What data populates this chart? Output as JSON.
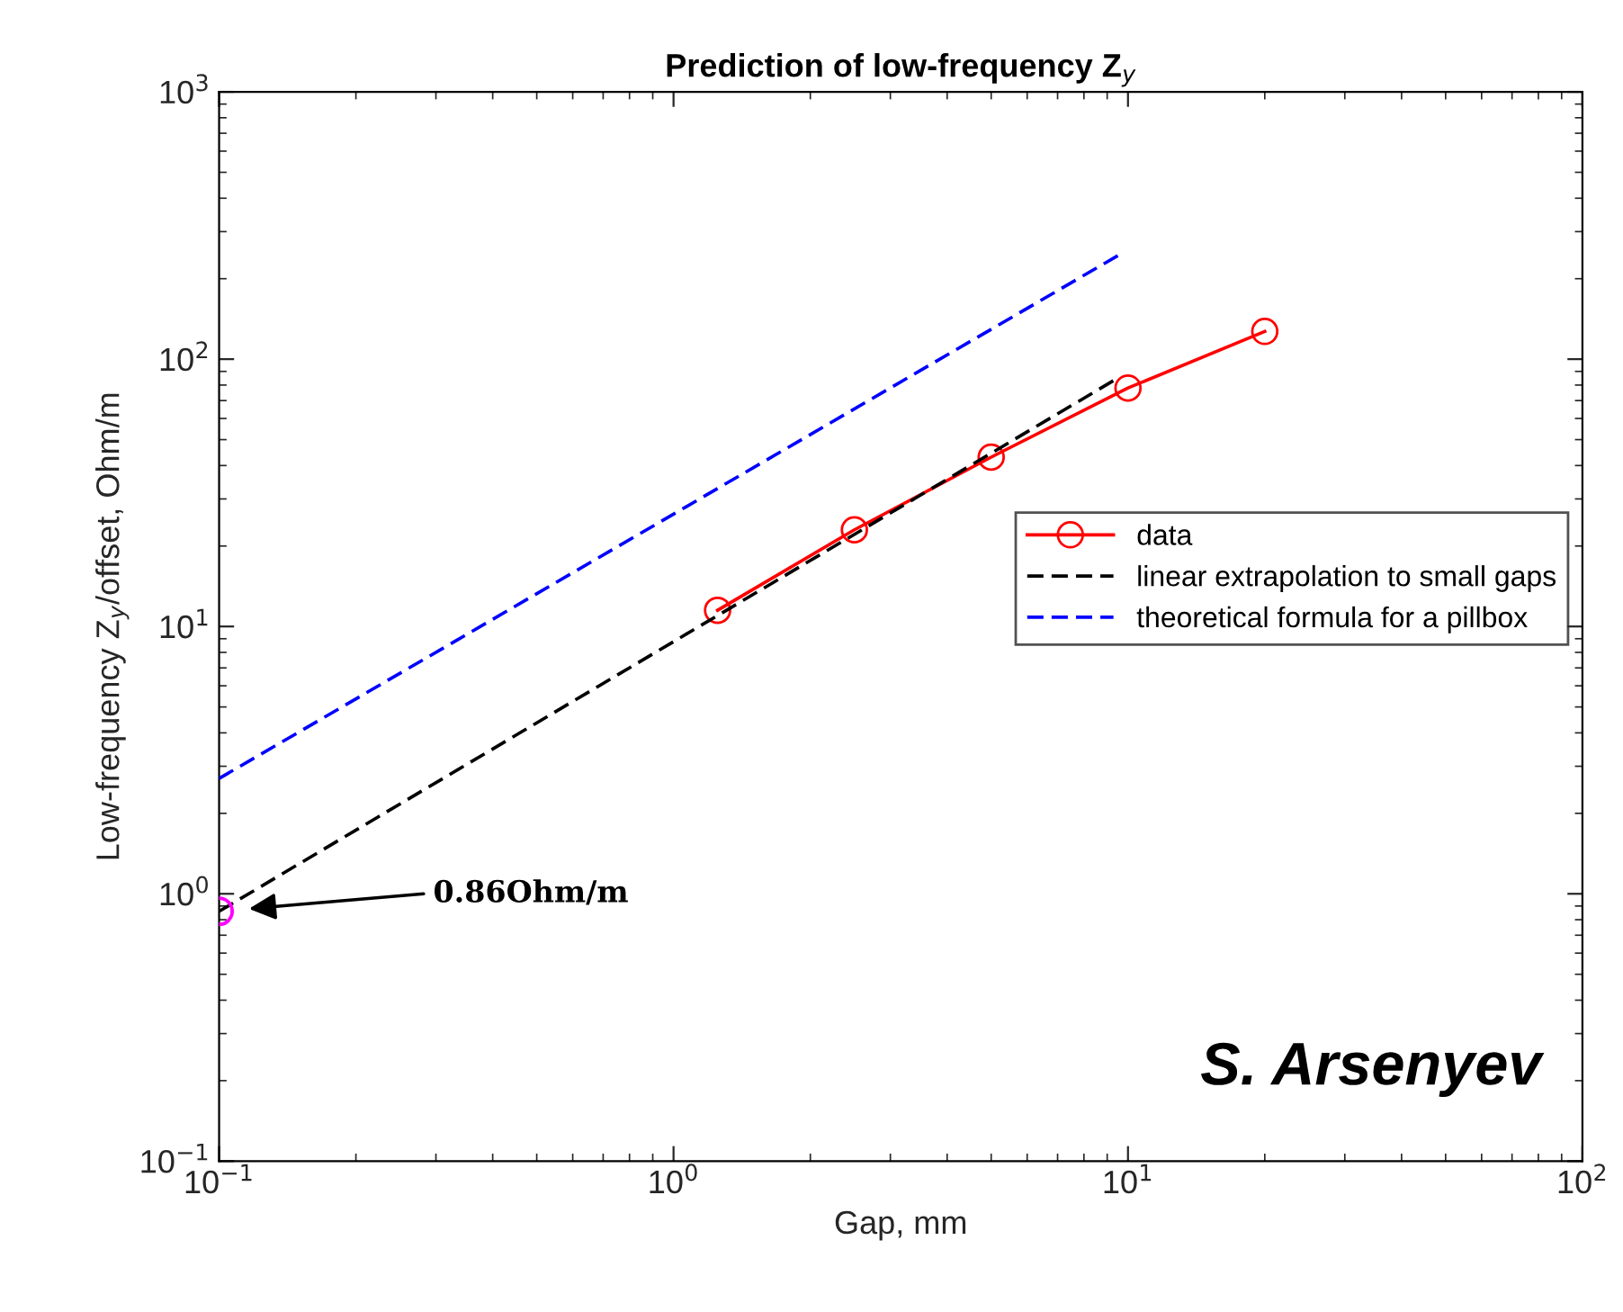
{
  "chart_data": {
    "type": "line",
    "title": "Prediction of low-frequency Z$_{y}$",
    "xlabel": "Gap, mm",
    "ylabel": "Low-frequency Z$_{y}$/offset, Ohm/m",
    "log": "xy",
    "xlim": [
      0.1,
      100
    ],
    "ylim": [
      0.1,
      1000
    ],
    "xticks": [
      {
        "value": 0.1,
        "label": "10$^{−1}$"
      },
      {
        "value": 1,
        "label": "10$^{0}$"
      },
      {
        "value": 10,
        "label": "10$^{1}$"
      },
      {
        "value": 100,
        "label": "10$^{2}$"
      }
    ],
    "yticks": [
      {
        "value": 0.1,
        "label": "10$^{−1}$"
      },
      {
        "value": 1,
        "label": "10$^{0}$"
      },
      {
        "value": 10,
        "label": "10$^{1}$"
      },
      {
        "value": 100,
        "label": "10$^{2}$"
      },
      {
        "value": 1000,
        "label": "10$^{3}$"
      }
    ],
    "grid": false,
    "legend": "right",
    "series": [
      {
        "name": "data",
        "color": "#ff0000",
        "marker": "circle",
        "line_style": "solid",
        "x": [
          1.25,
          2.5,
          5,
          10,
          20
        ],
        "values": [
          11.5,
          23,
          43,
          78,
          127
        ]
      },
      {
        "name": "linear extrapolation to small gaps",
        "color": "#000000",
        "marker": "none",
        "line_style": "dashed",
        "x": [
          0.1,
          9.5
        ],
        "values": [
          0.86,
          85
        ]
      },
      {
        "name": "theoretical formula for a pillbox",
        "color": "#0000ff",
        "marker": "none",
        "line_style": "dashed",
        "x": [
          0.1,
          9.5
        ],
        "values": [
          2.7,
          244
        ]
      },
      {
        "type": "scatter",
        "color": "#ff00ff",
        "marker": "circle",
        "x": [
          0.1
        ],
        "values": [
          0.86
        ]
      }
    ],
    "annotations": [
      "0.86Ohm/m",
      "S. Arsenyev"
    ]
  }
}
